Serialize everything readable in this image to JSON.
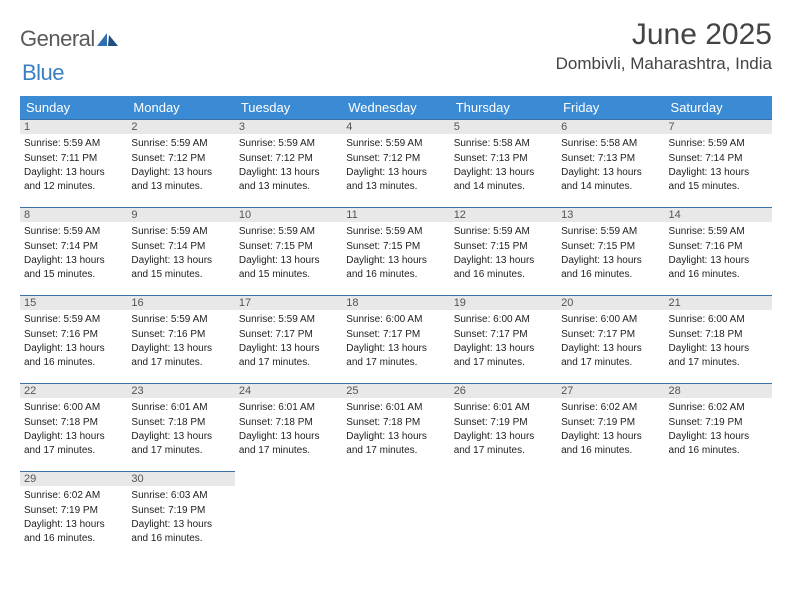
{
  "logo": {
    "text1": "General",
    "text2": "Blue"
  },
  "title": "June 2025",
  "location": "Dombivli, Maharashtra, India",
  "day_headers": [
    "Sunday",
    "Monday",
    "Tuesday",
    "Wednesday",
    "Thursday",
    "Friday",
    "Saturday"
  ],
  "header_bg": "#3b8bd4",
  "header_fg": "#ffffff",
  "border_color": "#3b6fa8",
  "daynum_bg": "#e8e8e8",
  "days": [
    {
      "n": "1",
      "sr": "5:59 AM",
      "ss": "7:11 PM",
      "dl": "13 hours and 12 minutes."
    },
    {
      "n": "2",
      "sr": "5:59 AM",
      "ss": "7:12 PM",
      "dl": "13 hours and 13 minutes."
    },
    {
      "n": "3",
      "sr": "5:59 AM",
      "ss": "7:12 PM",
      "dl": "13 hours and 13 minutes."
    },
    {
      "n": "4",
      "sr": "5:59 AM",
      "ss": "7:12 PM",
      "dl": "13 hours and 13 minutes."
    },
    {
      "n": "5",
      "sr": "5:58 AM",
      "ss": "7:13 PM",
      "dl": "13 hours and 14 minutes."
    },
    {
      "n": "6",
      "sr": "5:58 AM",
      "ss": "7:13 PM",
      "dl": "13 hours and 14 minutes."
    },
    {
      "n": "7",
      "sr": "5:59 AM",
      "ss": "7:14 PM",
      "dl": "13 hours and 15 minutes."
    },
    {
      "n": "8",
      "sr": "5:59 AM",
      "ss": "7:14 PM",
      "dl": "13 hours and 15 minutes."
    },
    {
      "n": "9",
      "sr": "5:59 AM",
      "ss": "7:14 PM",
      "dl": "13 hours and 15 minutes."
    },
    {
      "n": "10",
      "sr": "5:59 AM",
      "ss": "7:15 PM",
      "dl": "13 hours and 15 minutes."
    },
    {
      "n": "11",
      "sr": "5:59 AM",
      "ss": "7:15 PM",
      "dl": "13 hours and 16 minutes."
    },
    {
      "n": "12",
      "sr": "5:59 AM",
      "ss": "7:15 PM",
      "dl": "13 hours and 16 minutes."
    },
    {
      "n": "13",
      "sr": "5:59 AM",
      "ss": "7:15 PM",
      "dl": "13 hours and 16 minutes."
    },
    {
      "n": "14",
      "sr": "5:59 AM",
      "ss": "7:16 PM",
      "dl": "13 hours and 16 minutes."
    },
    {
      "n": "15",
      "sr": "5:59 AM",
      "ss": "7:16 PM",
      "dl": "13 hours and 16 minutes."
    },
    {
      "n": "16",
      "sr": "5:59 AM",
      "ss": "7:16 PM",
      "dl": "13 hours and 17 minutes."
    },
    {
      "n": "17",
      "sr": "5:59 AM",
      "ss": "7:17 PM",
      "dl": "13 hours and 17 minutes."
    },
    {
      "n": "18",
      "sr": "6:00 AM",
      "ss": "7:17 PM",
      "dl": "13 hours and 17 minutes."
    },
    {
      "n": "19",
      "sr": "6:00 AM",
      "ss": "7:17 PM",
      "dl": "13 hours and 17 minutes."
    },
    {
      "n": "20",
      "sr": "6:00 AM",
      "ss": "7:17 PM",
      "dl": "13 hours and 17 minutes."
    },
    {
      "n": "21",
      "sr": "6:00 AM",
      "ss": "7:18 PM",
      "dl": "13 hours and 17 minutes."
    },
    {
      "n": "22",
      "sr": "6:00 AM",
      "ss": "7:18 PM",
      "dl": "13 hours and 17 minutes."
    },
    {
      "n": "23",
      "sr": "6:01 AM",
      "ss": "7:18 PM",
      "dl": "13 hours and 17 minutes."
    },
    {
      "n": "24",
      "sr": "6:01 AM",
      "ss": "7:18 PM",
      "dl": "13 hours and 17 minutes."
    },
    {
      "n": "25",
      "sr": "6:01 AM",
      "ss": "7:18 PM",
      "dl": "13 hours and 17 minutes."
    },
    {
      "n": "26",
      "sr": "6:01 AM",
      "ss": "7:19 PM",
      "dl": "13 hours and 17 minutes."
    },
    {
      "n": "27",
      "sr": "6:02 AM",
      "ss": "7:19 PM",
      "dl": "13 hours and 16 minutes."
    },
    {
      "n": "28",
      "sr": "6:02 AM",
      "ss": "7:19 PM",
      "dl": "13 hours and 16 minutes."
    },
    {
      "n": "29",
      "sr": "6:02 AM",
      "ss": "7:19 PM",
      "dl": "13 hours and 16 minutes."
    },
    {
      "n": "30",
      "sr": "6:03 AM",
      "ss": "7:19 PM",
      "dl": "13 hours and 16 minutes."
    }
  ],
  "labels": {
    "sunrise": "Sunrise: ",
    "sunset": "Sunset: ",
    "daylight": "Daylight: "
  }
}
